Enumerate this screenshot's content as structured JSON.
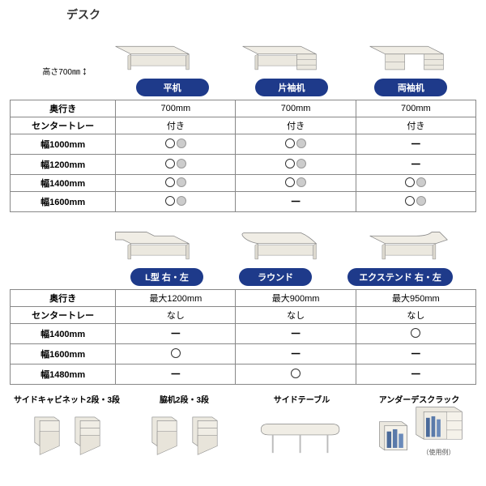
{
  "title": "デスク",
  "height_label": "高さ700㎜",
  "badge_color": "#1e3a8a",
  "tables": [
    {
      "desks": [
        {
          "label": "平机",
          "img": "plain"
        },
        {
          "label": "片袖机",
          "img": "single"
        },
        {
          "label": "両袖机",
          "img": "double"
        }
      ],
      "rows": [
        {
          "h": "奥行き",
          "c": [
            "700mm",
            "700mm",
            "700mm"
          ]
        },
        {
          "h": "センタートレー",
          "c": [
            "付き",
            "付き",
            "付き"
          ]
        },
        {
          "h": "幅1000mm",
          "c": [
            "OO",
            "OO",
            "-"
          ]
        },
        {
          "h": "幅1200mm",
          "c": [
            "OO",
            "OO",
            "-"
          ]
        },
        {
          "h": "幅1400mm",
          "c": [
            "OO",
            "OO",
            "OO"
          ]
        },
        {
          "h": "幅1600mm",
          "c": [
            "OO",
            "-",
            "OO"
          ]
        }
      ]
    },
    {
      "desks": [
        {
          "label": "L型 右・左",
          "img": "lshape"
        },
        {
          "label": "ラウンド",
          "img": "round"
        },
        {
          "label": "エクステンド 右・左",
          "img": "extend"
        }
      ],
      "rows": [
        {
          "h": "奥行き",
          "c": [
            "最大1200mm",
            "最大900mm",
            "最大950mm"
          ]
        },
        {
          "h": "センタートレー",
          "c": [
            "なし",
            "なし",
            "なし"
          ]
        },
        {
          "h": "幅1400mm",
          "c": [
            "-",
            "-",
            "O"
          ]
        },
        {
          "h": "幅1600mm",
          "c": [
            "O",
            "-",
            "-"
          ]
        },
        {
          "h": "幅1480mm",
          "c": [
            "-",
            "O",
            "-"
          ]
        }
      ]
    }
  ],
  "bottom": [
    {
      "label": "サイドキャビネット2段・3段",
      "img": "cabinet"
    },
    {
      "label": "脇机2段・3段",
      "img": "sidedesk"
    },
    {
      "label": "サイドテーブル",
      "img": "sidetable"
    },
    {
      "label": "アンダーデスクラック",
      "img": "rack"
    }
  ],
  "usage_note": "（使用例）"
}
